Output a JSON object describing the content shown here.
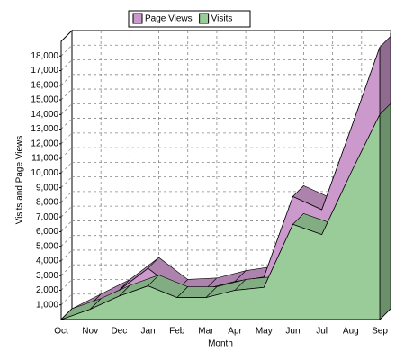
{
  "chart_data": {
    "type": "area",
    "x_label": "Month",
    "y_label": "Visits and Page Views",
    "categories": [
      "Oct",
      "Nov",
      "Dec",
      "Jan",
      "Feb",
      "Mar",
      "Apr",
      "May",
      "Jun",
      "Jul",
      "Aug",
      "Sep"
    ],
    "series": [
      {
        "name": "Page Views",
        "color": "#cc99cc",
        "values": [
          0,
          1000,
          2000,
          3500,
          2000,
          2100,
          2600,
          2900,
          8400,
          7500,
          13000,
          18600
        ]
      },
      {
        "name": "Visits",
        "color": "#99cc99",
        "values": [
          0,
          700,
          1600,
          2300,
          1500,
          1500,
          2000,
          2200,
          6500,
          5800,
          10000,
          14000
        ]
      }
    ],
    "ylim": [
      0,
      19000
    ],
    "yticks": [
      {
        "value": 1000,
        "label": "1,000"
      },
      {
        "value": 2000,
        "label": "2,000"
      },
      {
        "value": 3000,
        "label": "3,000"
      },
      {
        "value": 4000,
        "label": "4,000"
      },
      {
        "value": 5000,
        "label": "5,000"
      },
      {
        "value": 6000,
        "label": "6,000"
      },
      {
        "value": 7000,
        "label": "7,000"
      },
      {
        "value": 8000,
        "label": "8,000"
      },
      {
        "value": 9000,
        "label": "9,000"
      },
      {
        "value": 10000,
        "label": "10,000"
      },
      {
        "value": 11000,
        "label": "11,000"
      },
      {
        "value": 12000,
        "label": "12,000"
      },
      {
        "value": 13000,
        "label": "13,000"
      },
      {
        "value": 14000,
        "label": "14,000"
      },
      {
        "value": 15000,
        "label": "15,000"
      },
      {
        "value": 16000,
        "label": "16,000"
      },
      {
        "value": 17000,
        "label": "17,000"
      },
      {
        "value": 18000,
        "label": "18,000"
      }
    ],
    "grid": true
  }
}
